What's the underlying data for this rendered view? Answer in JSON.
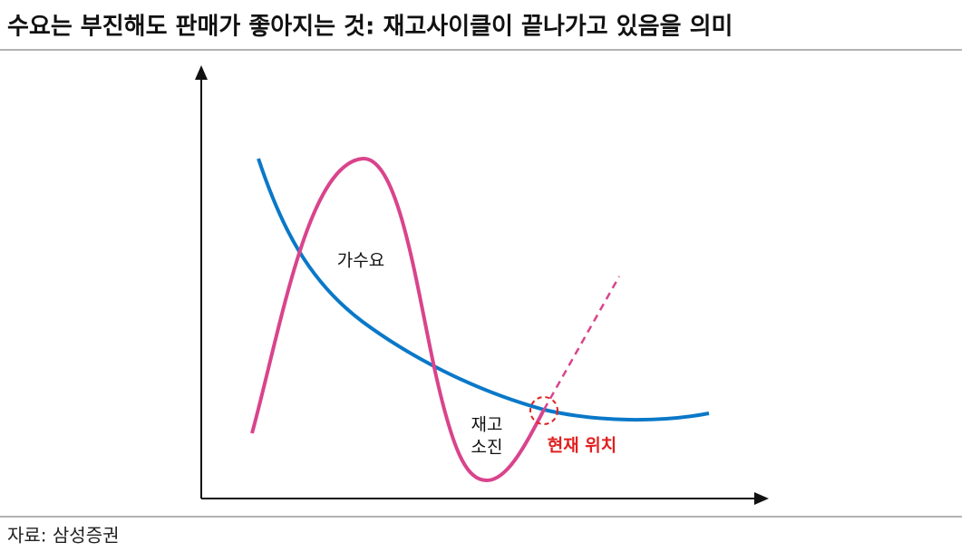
{
  "title": "수요는 부진해도 판매가 좋아지는 것: 재고사이클이 끝나가고 있음을 의미",
  "labels": {
    "speculative_demand": "가수요",
    "inventory_depletion": [
      "재고",
      "소진"
    ],
    "current_position": "현재 위치"
  },
  "source": "자료: 삼성증권"
}
